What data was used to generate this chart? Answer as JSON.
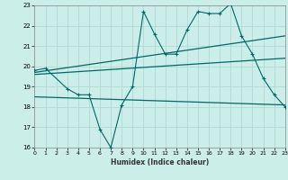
{
  "xlabel": "Humidex (Indice chaleur)",
  "background_color": "#cceee8",
  "grid_color": "#b0d8d4",
  "line_color": "#006868",
  "xlim": [
    0,
    23
  ],
  "ylim": [
    16,
    23
  ],
  "yticks": [
    16,
    17,
    18,
    19,
    20,
    21,
    22,
    23
  ],
  "xticks": [
    0,
    1,
    2,
    3,
    4,
    5,
    6,
    7,
    8,
    9,
    10,
    11,
    12,
    13,
    14,
    15,
    16,
    17,
    18,
    19,
    20,
    21,
    22,
    23
  ],
  "series1_x": [
    0,
    1,
    3,
    4,
    5,
    6,
    7,
    8,
    9,
    10,
    11,
    12,
    13,
    14,
    15,
    16,
    17,
    18,
    19,
    20,
    21,
    22,
    23
  ],
  "series1_y": [
    19.8,
    19.9,
    18.9,
    18.6,
    18.6,
    16.9,
    16.0,
    18.1,
    19.0,
    22.7,
    21.6,
    20.6,
    20.6,
    21.8,
    22.7,
    22.6,
    22.6,
    23.1,
    21.5,
    20.6,
    19.4,
    18.6,
    18.0
  ],
  "series2_x": [
    0,
    23
  ],
  "series2_y": [
    19.7,
    21.5
  ],
  "series3_x": [
    0,
    23
  ],
  "series3_y": [
    19.6,
    20.4
  ],
  "series4_x": [
    0,
    23
  ],
  "series4_y": [
    18.5,
    18.1
  ]
}
